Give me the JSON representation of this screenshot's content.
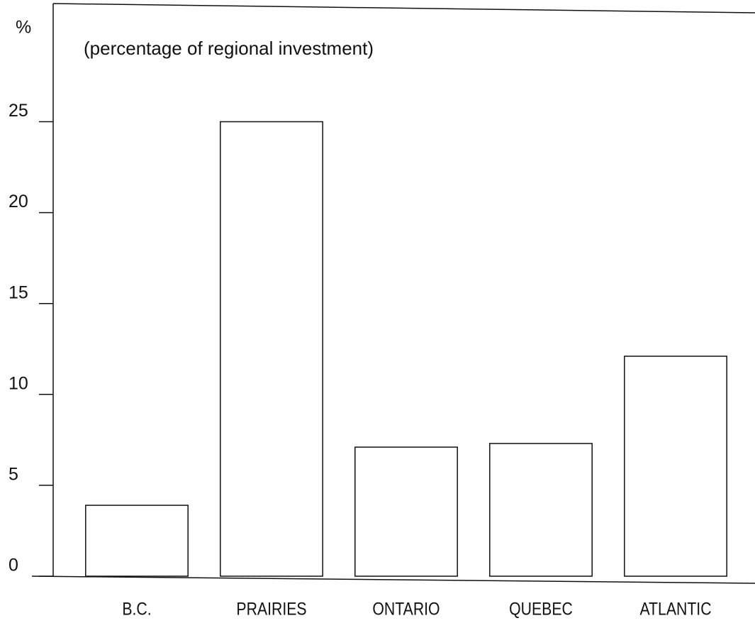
{
  "chart_data": {
    "type": "bar",
    "y_label": "%",
    "subtitle": "(percentage of regional investment)",
    "categories": [
      "B.C.",
      "PRAIRIES",
      "ONTARIO",
      "QUEBEC",
      "ATLANTIC"
    ],
    "values": [
      3.9,
      25,
      7.1,
      7.3,
      12.1
    ],
    "color": "#ffffff",
    "ylim": [
      0,
      31.5
    ],
    "yticks": [
      0,
      5,
      10,
      15,
      20,
      25
    ],
    "grid": false
  }
}
